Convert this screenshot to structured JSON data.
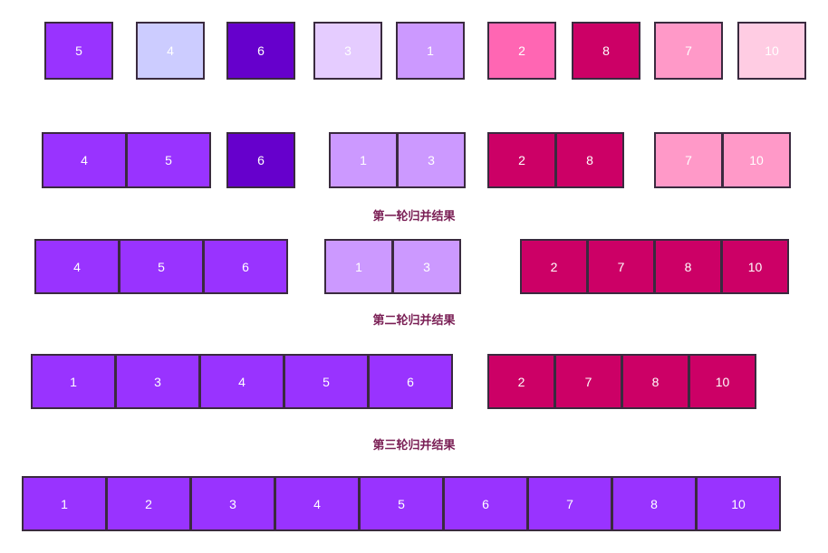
{
  "stages": [
    {
      "groups": [
        {
          "cells": [
            {
              "value": "5",
              "color": "#9933ff"
            }
          ]
        },
        {
          "cells": [
            {
              "value": "4",
              "color": "#ccccff"
            }
          ]
        },
        {
          "cells": [
            {
              "value": "6",
              "color": "#6600cc"
            }
          ]
        },
        {
          "cells": [
            {
              "value": "3",
              "color": "#e5ccff"
            }
          ]
        },
        {
          "cells": [
            {
              "value": "1",
              "color": "#cc99ff"
            }
          ]
        },
        {
          "cells": [
            {
              "value": "2",
              "color": "#ff66b3"
            }
          ]
        },
        {
          "cells": [
            {
              "value": "8",
              "color": "#cc0066"
            }
          ]
        },
        {
          "cells": [
            {
              "value": "7",
              "color": "#ff99c8"
            }
          ]
        },
        {
          "cells": [
            {
              "value": "10",
              "color": "#ffcce3"
            }
          ]
        }
      ]
    },
    {
      "caption": "第一轮归并结果",
      "groups": [
        {
          "cells": [
            {
              "value": "4",
              "color": "#9933ff"
            },
            {
              "value": "5",
              "color": "#9933ff"
            }
          ]
        },
        {
          "cells": [
            {
              "value": "6",
              "color": "#6600cc"
            }
          ]
        },
        {
          "cells": [
            {
              "value": "1",
              "color": "#cc99ff"
            },
            {
              "value": "3",
              "color": "#cc99ff"
            }
          ]
        },
        {
          "cells": [
            {
              "value": "2",
              "color": "#cc0066"
            },
            {
              "value": "8",
              "color": "#cc0066"
            }
          ]
        },
        {
          "cells": [
            {
              "value": "7",
              "color": "#ff99c8"
            },
            {
              "value": "10",
              "color": "#ff99c8"
            }
          ]
        }
      ]
    },
    {
      "caption": "第二轮归并结果",
      "groups": [
        {
          "cells": [
            {
              "value": "4",
              "color": "#9933ff"
            },
            {
              "value": "5",
              "color": "#9933ff"
            },
            {
              "value": "6",
              "color": "#9933ff"
            }
          ]
        },
        {
          "cells": [
            {
              "value": "1",
              "color": "#cc99ff"
            },
            {
              "value": "3",
              "color": "#cc99ff"
            }
          ]
        },
        {
          "cells": [
            {
              "value": "2",
              "color": "#cc0066"
            },
            {
              "value": "7",
              "color": "#cc0066"
            },
            {
              "value": "8",
              "color": "#cc0066"
            },
            {
              "value": "10",
              "color": "#cc0066"
            }
          ]
        }
      ]
    },
    {
      "caption": "第三轮归并结果",
      "groups": [
        {
          "cells": [
            {
              "value": "1",
              "color": "#9933ff"
            },
            {
              "value": "3",
              "color": "#9933ff"
            },
            {
              "value": "4",
              "color": "#9933ff"
            },
            {
              "value": "5",
              "color": "#9933ff"
            },
            {
              "value": "6",
              "color": "#9933ff"
            }
          ]
        },
        {
          "cells": [
            {
              "value": "2",
              "color": "#cc0066"
            },
            {
              "value": "7",
              "color": "#cc0066"
            },
            {
              "value": "8",
              "color": "#cc0066"
            },
            {
              "value": "10",
              "color": "#cc0066"
            }
          ]
        }
      ]
    },
    {
      "groups": [
        {
          "cells": [
            {
              "value": "1",
              "color": "#9933ff"
            },
            {
              "value": "2",
              "color": "#9933ff"
            },
            {
              "value": "3",
              "color": "#9933ff"
            },
            {
              "value": "4",
              "color": "#9933ff"
            },
            {
              "value": "5",
              "color": "#9933ff"
            },
            {
              "value": "6",
              "color": "#9933ff"
            },
            {
              "value": "7",
              "color": "#9933ff"
            },
            {
              "value": "8",
              "color": "#9933ff"
            },
            {
              "value": "10",
              "color": "#9933ff"
            }
          ]
        }
      ]
    }
  ]
}
